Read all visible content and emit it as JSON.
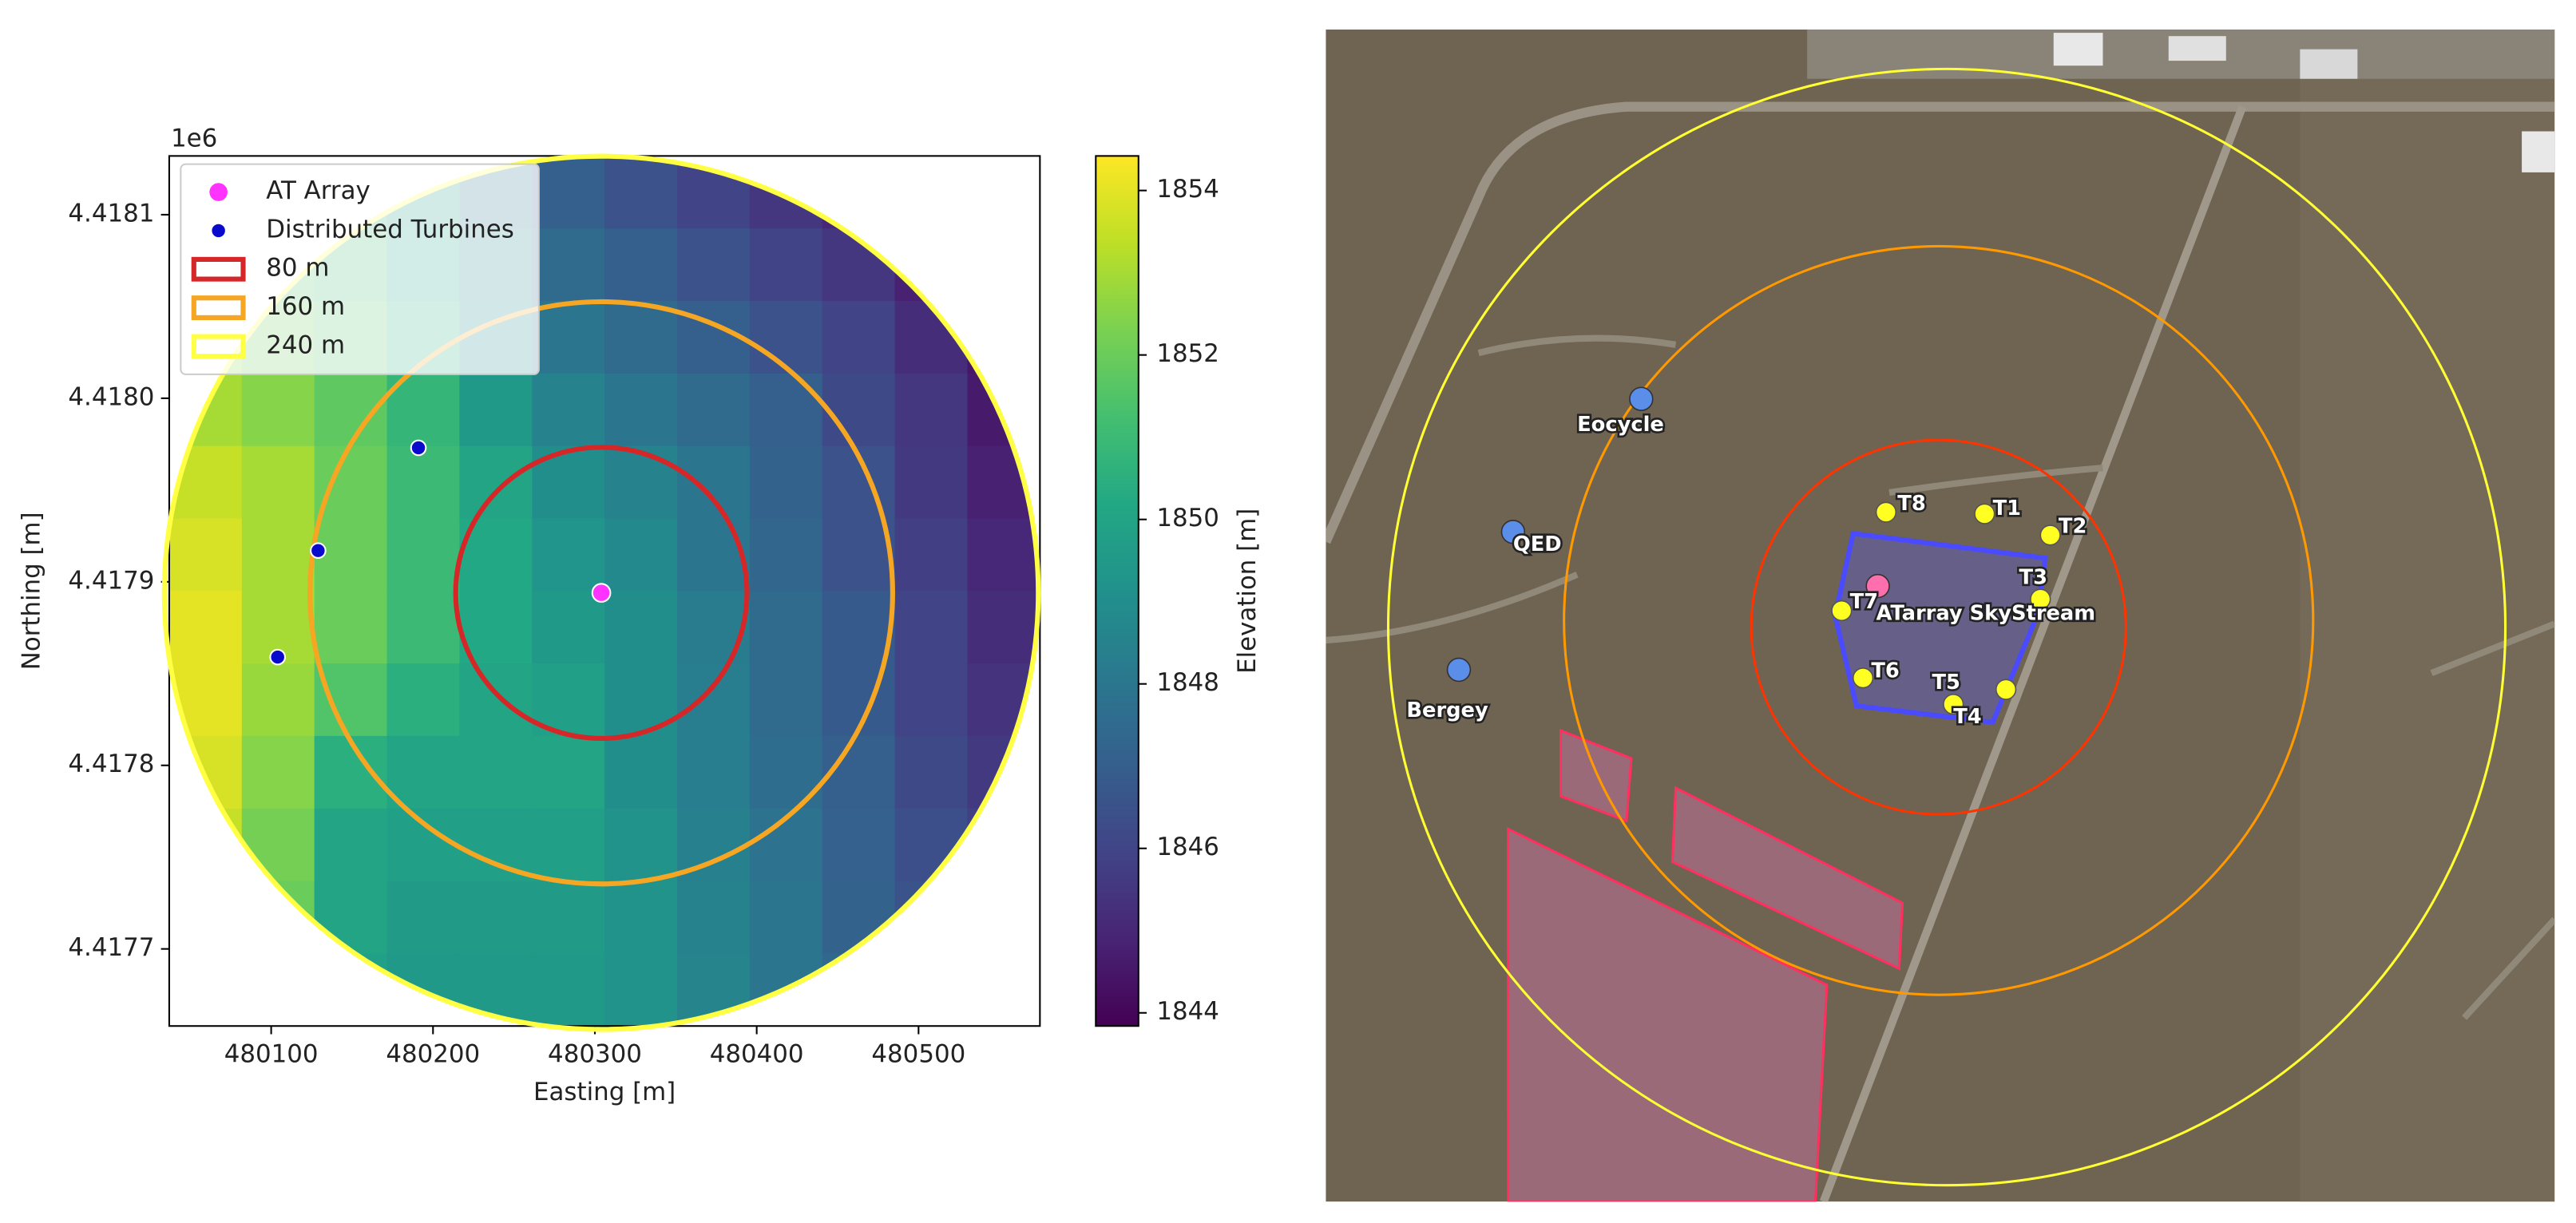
{
  "chart_data": {
    "type": "heatmap",
    "xlabel": "Easting [m]",
    "ylabel": "Northing [m]",
    "y_offset_label": "1e6",
    "xlim": [
      480037,
      480575
    ],
    "ylim": [
      4417658,
      4418132
    ],
    "xticks": [
      480100,
      480200,
      480300,
      480400,
      480500
    ],
    "yticks": [
      {
        "value": 4417700,
        "label": "4.4177"
      },
      {
        "value": 4417800,
        "label": "4.4178"
      },
      {
        "value": 4417900,
        "label": "4.4179"
      },
      {
        "value": 4418000,
        "label": "4.4180"
      },
      {
        "value": 4418100,
        "label": "4.4181"
      }
    ],
    "colormap": "viridis",
    "z": [
      [
        null,
        null,
        1850.5,
        1849.5,
        1848,
        1847,
        1846.5,
        1846,
        1845.5,
        1845,
        null,
        null
      ],
      [
        null,
        1851.5,
        1851,
        1850,
        1848.5,
        1847.5,
        1847,
        1846.5,
        1846,
        1845.5,
        1844.8,
        null
      ],
      [
        1852.5,
        1852,
        1851.5,
        1850.5,
        1849,
        1848,
        1847.5,
        1847,
        1846.5,
        1846,
        1845.2,
        1844.5
      ],
      [
        1853,
        1852.5,
        1851.8,
        1850.8,
        1849.5,
        1848.5,
        1848,
        1847.5,
        1847,
        1846.2,
        1845.5,
        1844.6
      ],
      [
        1853.5,
        1853,
        1852,
        1851,
        1850,
        1849,
        1848.5,
        1848,
        1847.2,
        1846.5,
        1845.6,
        1844.8
      ],
      [
        1853.8,
        1853,
        1852,
        1851,
        1850.2,
        1849.3,
        1848.8,
        1848,
        1847.3,
        1846.5,
        1845.8,
        1845
      ],
      [
        1854,
        1853,
        1852,
        1851,
        1850.2,
        1849.5,
        1849,
        1848.2,
        1847.5,
        1846.8,
        1846,
        1845.2
      ],
      [
        1854,
        1852.8,
        1851.5,
        1850.5,
        1850,
        1849.8,
        1849,
        1848.3,
        1847.5,
        1846.8,
        1846,
        1845.4
      ],
      [
        1853.8,
        1852.5,
        1850.5,
        1850,
        1850,
        1850,
        1849,
        1848.3,
        1847.6,
        1847,
        1846.2,
        1845.6
      ],
      [
        1853.5,
        1852.2,
        1850,
        1849.8,
        1849.8,
        1849.8,
        1849.2,
        1848.4,
        1847.8,
        1847.1,
        1846.4,
        1845.8
      ],
      [
        null,
        1852,
        1850,
        1849.6,
        1849.6,
        1849.6,
        1849.2,
        1848.5,
        1848,
        1847.2,
        1846.6,
        null
      ],
      [
        null,
        null,
        1849.8,
        1849.5,
        1849.5,
        1849.5,
        1849.2,
        1848.6,
        1848,
        1847.4,
        null,
        null
      ]
    ],
    "colorbar": {
      "label": "Elevation [m]",
      "lim": [
        1843.84,
        1854.42
      ],
      "ticks": [
        1844,
        1846,
        1848,
        1850,
        1852,
        1854
      ]
    },
    "series": [
      {
        "name": "AT Array",
        "color": "#ff33ff",
        "x": [
          480304
        ],
        "y": [
          4417894
        ]
      },
      {
        "name": "Distributed Turbines",
        "color": "#0a0acc",
        "x": [
          480191,
          480129,
          480104
        ],
        "y": [
          4417973,
          4417917,
          4417859
        ]
      }
    ],
    "circles": [
      {
        "name": "80 m",
        "color": "#d62728",
        "radius": 90
      },
      {
        "name": "160 m",
        "color": "#f5a623",
        "radius": 180
      },
      {
        "name": "240 m",
        "color": "#ffff44",
        "radius": 270
      }
    ],
    "legend": "upper left"
  },
  "image": {
    "labels": [
      "Eocycle",
      "QED",
      "Bergey",
      "T8",
      "T1",
      "T2",
      "T3",
      "T7",
      "ATarray SkyStream",
      "T6",
      "T5",
      "T4"
    ]
  }
}
